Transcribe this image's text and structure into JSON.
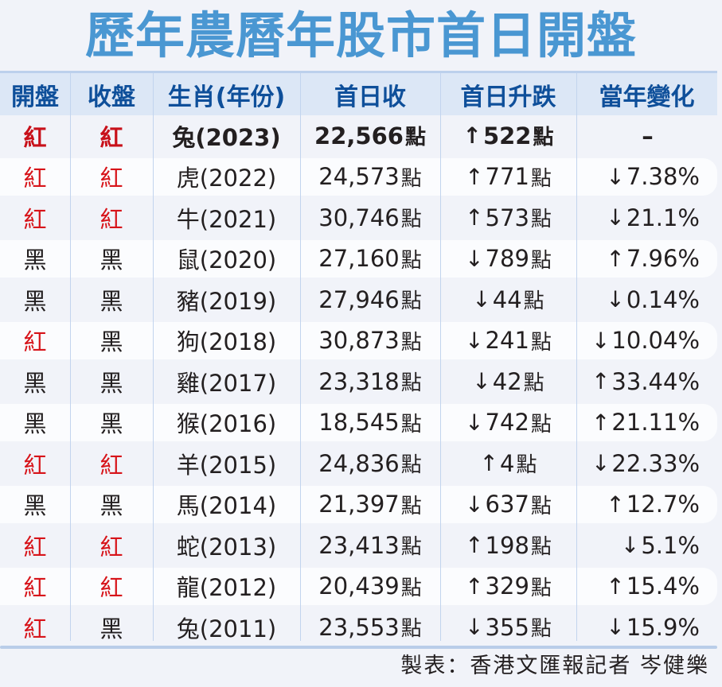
{
  "title": "歷年農曆年股市首日開盤",
  "header": {
    "columns": [
      "開盤",
      "收盤",
      "生肖(年份)",
      "首日收",
      "首日升跌",
      "當年變化"
    ]
  },
  "colors": {
    "title": "#4a97d2",
    "header_text": "#0e4f9a",
    "header_bg": "#dce7f6",
    "red": "#d7141a",
    "black": "#231f20",
    "background": "#f1f3f9"
  },
  "rows": [
    {
      "open": "紅",
      "close": "紅",
      "zodiac": "兔(2023)",
      "close_points": "22,566",
      "change_arrow": "↑",
      "change": "522",
      "year_arrow": "",
      "year_change": "–",
      "unit": "點"
    },
    {
      "open": "紅",
      "close": "紅",
      "zodiac": "虎(2022)",
      "close_points": "24,573",
      "change_arrow": "↑",
      "change": "771",
      "year_arrow": "↓",
      "year_change": "7.38%",
      "unit": "點"
    },
    {
      "open": "紅",
      "close": "紅",
      "zodiac": "牛(2021)",
      "close_points": "30,746",
      "change_arrow": "↑",
      "change": "573",
      "year_arrow": "↓",
      "year_change": "21.1%",
      "unit": "點"
    },
    {
      "open": "黑",
      "close": "黑",
      "zodiac": "鼠(2020)",
      "close_points": "27,160",
      "change_arrow": "↓",
      "change": "789",
      "year_arrow": "↑",
      "year_change": "7.96%",
      "unit": "點"
    },
    {
      "open": "黑",
      "close": "黑",
      "zodiac": "豬(2019)",
      "close_points": "27,946",
      "change_arrow": "↓",
      "change": "44",
      "year_arrow": "↓",
      "year_change": "0.14%",
      "unit": "點"
    },
    {
      "open": "紅",
      "close": "黑",
      "zodiac": "狗(2018)",
      "close_points": "30,873",
      "change_arrow": "↓",
      "change": "241",
      "year_arrow": "↓",
      "year_change": "10.04%",
      "unit": "點"
    },
    {
      "open": "黑",
      "close": "黑",
      "zodiac": "雞(2017)",
      "close_points": "23,318",
      "change_arrow": "↓",
      "change": "42",
      "year_arrow": "↑",
      "year_change": "33.44%",
      "unit": "點"
    },
    {
      "open": "黑",
      "close": "黑",
      "zodiac": "猴(2016)",
      "close_points": "18,545",
      "change_arrow": "↓",
      "change": "742",
      "year_arrow": "↑",
      "year_change": "21.11%",
      "unit": "點"
    },
    {
      "open": "紅",
      "close": "紅",
      "zodiac": "羊(2015)",
      "close_points": "24,836",
      "change_arrow": "↑",
      "change": "4",
      "year_arrow": "↓",
      "year_change": "22.33%",
      "unit": "點"
    },
    {
      "open": "黑",
      "close": "黑",
      "zodiac": "馬(2014)",
      "close_points": "21,397",
      "change_arrow": "↓",
      "change": "637",
      "year_arrow": "↑",
      "year_change": "12.7%",
      "unit": "點"
    },
    {
      "open": "紅",
      "close": "紅",
      "zodiac": "蛇(2013)",
      "close_points": "23,413",
      "change_arrow": "↑",
      "change": "198",
      "year_arrow": "↓",
      "year_change": "5.1%",
      "unit": "點"
    },
    {
      "open": "紅",
      "close": "紅",
      "zodiac": "龍(2012)",
      "close_points": "20,439",
      "change_arrow": "↑",
      "change": "329",
      "year_arrow": "↑",
      "year_change": "15.4%",
      "unit": "點"
    },
    {
      "open": "紅",
      "close": "黑",
      "zodiac": "兔(2011)",
      "close_points": "23,553",
      "change_arrow": "↓",
      "change": "355",
      "year_arrow": "↓",
      "year_change": "15.9%",
      "unit": "點"
    }
  ],
  "footer": "製表：香港文匯報記者 岑健樂",
  "chart_data": {
    "type": "table",
    "title": "歷年農曆年股市首日開盤",
    "columns": [
      "開盤",
      "收盤",
      "生肖(年份)",
      "首日收",
      "首日升跌",
      "當年變化"
    ],
    "rows": [
      [
        "紅",
        "紅",
        "兔(2023)",
        "22,566點",
        "↑522點",
        "–"
      ],
      [
        "紅",
        "紅",
        "虎(2022)",
        "24,573點",
        "↑771點",
        "↓7.38%"
      ],
      [
        "紅",
        "紅",
        "牛(2021)",
        "30,746點",
        "↑573點",
        "↓21.1%"
      ],
      [
        "黑",
        "黑",
        "鼠(2020)",
        "27,160點",
        "↓789點",
        "↑7.96%"
      ],
      [
        "黑",
        "黑",
        "豬(2019)",
        "27,946點",
        "↓44點",
        "↓0.14%"
      ],
      [
        "紅",
        "黑",
        "狗(2018)",
        "30,873點",
        "↓241點",
        "↓10.04%"
      ],
      [
        "黑",
        "黑",
        "雞(2017)",
        "23,318點",
        "↓42點",
        "↑33.44%"
      ],
      [
        "黑",
        "黑",
        "猴(2016)",
        "18,545點",
        "↓742點",
        "↑21.11%"
      ],
      [
        "紅",
        "紅",
        "羊(2015)",
        "24,836點",
        "↑4點",
        "↓22.33%"
      ],
      [
        "黑",
        "黑",
        "馬(2014)",
        "21,397點",
        "↓637點",
        "↑12.7%"
      ],
      [
        "紅",
        "紅",
        "蛇(2013)",
        "23,413點",
        "↑198點",
        "↓5.1%"
      ],
      [
        "紅",
        "紅",
        "龍(2012)",
        "20,439點",
        "↑329點",
        "↑15.4%"
      ],
      [
        "紅",
        "黑",
        "兔(2011)",
        "23,553點",
        "↓355點",
        "↓15.9%"
      ]
    ],
    "years": [
      2023,
      2022,
      2021,
      2020,
      2019,
      2018,
      2017,
      2016,
      2015,
      2014,
      2013,
      2012,
      2011
    ],
    "first_day_close": [
      22566,
      24573,
      30746,
      27160,
      27946,
      30873,
      23318,
      18545,
      24836,
      21397,
      23413,
      20439,
      23553
    ],
    "first_day_change": [
      522,
      771,
      573,
      -789,
      -44,
      -241,
      -42,
      -742,
      4,
      -637,
      198,
      329,
      -355
    ],
    "year_change_pct": [
      null,
      -7.38,
      -21.1,
      7.96,
      -0.14,
      -10.04,
      33.44,
      21.11,
      -22.33,
      12.7,
      -5.1,
      15.4,
      -15.9
    ],
    "footer": "製表：香港文匯報記者 岑健樂"
  }
}
